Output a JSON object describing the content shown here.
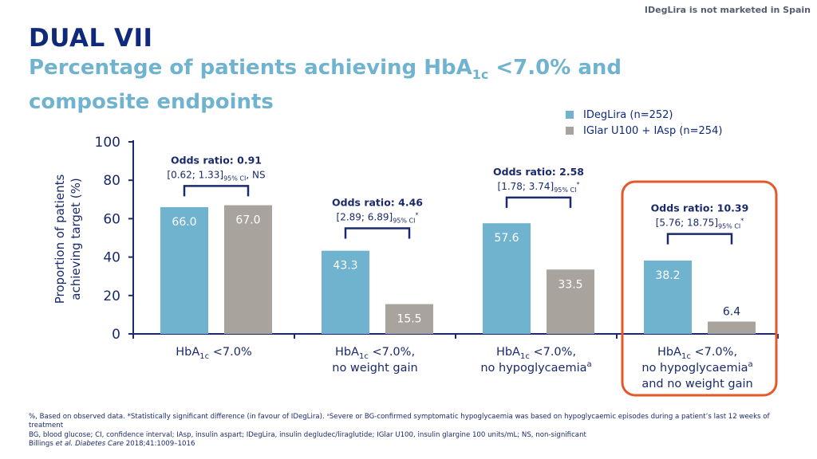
{
  "header": {
    "note": "IDegLira is not marketed in Spain",
    "title": "DUAL VII",
    "subtitle_part1": "Percentage of patients achieving HbA",
    "subtitle_sub": "1c",
    "subtitle_part2": " <7.0% and composite endpoints"
  },
  "legend": {
    "items": [
      {
        "label": "IDegLira (n=252)",
        "color": "#6fb3cf"
      },
      {
        "label": "IGlar U100 + IAsp (n=254)",
        "color": "#a8a39c"
      }
    ]
  },
  "chart_data": {
    "type": "bar",
    "ylabel_line1": "Proportion of patients",
    "ylabel_line2": "achieving target (%)",
    "ylim": [
      0,
      100
    ],
    "yticks": [
      0,
      20,
      40,
      60,
      80,
      100
    ],
    "categories": [
      {
        "pre": "HbA",
        "sub": "1c",
        "line1_post": " <7.0%",
        "line2": "",
        "line2_sup": "",
        "line3": ""
      },
      {
        "pre": "HbA",
        "sub": "1c",
        "line1_post": " <7.0%,",
        "line2": "no weight gain",
        "line2_sup": "",
        "line3": ""
      },
      {
        "pre": "HbA",
        "sub": "1c",
        "line1_post": " <7.0%,",
        "line2": "no hypoglycaemia",
        "line2_sup": "a",
        "line3": ""
      },
      {
        "pre": "HbA",
        "sub": "1c",
        "line1_post": " <7.0%,",
        "line2": "no hypoglycaemia",
        "line2_sup": "a",
        "line3": "and no weight gain"
      }
    ],
    "series": [
      {
        "name": "IDegLira (n=252)",
        "color": "#6fb3cf",
        "values": [
          66.0,
          43.3,
          57.6,
          38.2
        ],
        "labels": [
          "66.0",
          "43.3",
          "57.6",
          "38.2"
        ]
      },
      {
        "name": "IGlar U100 + IAsp (n=254)",
        "color": "#a8a39c",
        "values": [
          67.0,
          15.5,
          33.5,
          6.4
        ],
        "labels": [
          "67.0",
          "15.5",
          "33.5",
          "6.4"
        ]
      }
    ],
    "annotations": [
      {
        "title": "Odds ratio: 0.91",
        "ci": "[0.62; 1.33]",
        "ci_sub": "95% CI",
        "suffix": ", NS",
        "star": "",
        "bracket_at": 77
      },
      {
        "title": "Odds ratio: 4.46",
        "ci": "[2.89; 6.89]",
        "ci_sub": "95% CI",
        "suffix": "",
        "star": "*",
        "bracket_at": 55
      },
      {
        "title": "Odds ratio: 2.58",
        "ci": "[1.78; 3.74]",
        "ci_sub": "95% CI",
        "suffix": "",
        "star": "*",
        "bracket_at": 71
      },
      {
        "title": "Odds ratio: 10.39",
        "ci": "[5.76; 18.75]",
        "ci_sub": "95% CI",
        "suffix": "",
        "star": "*",
        "bracket_at": 52
      }
    ],
    "highlight_category": 3,
    "highlight_color": "#e2592a"
  },
  "footnotes": {
    "line1": "%, Based on observed data. *Statistically significant difference (in favour of IDegLira). ᵃSevere or BG-confirmed symptomatic hypoglycaemia was based on hypoglycaemic episodes during a patient’s last 12 weeks of treatment",
    "line2": "BG, blood glucose; CI, confidence interval; IAsp, insulin aspart; IDegLira, insulin degludec/liraglutide; IGlar U100, insulin glargine 100 units/mL; NS, non-significant",
    "line3_authors": "Billings ",
    "line3_etal": "et al.",
    "line3_journal": " Diabetes Care",
    "line3_ref": " 2018;41:1009–1016"
  }
}
